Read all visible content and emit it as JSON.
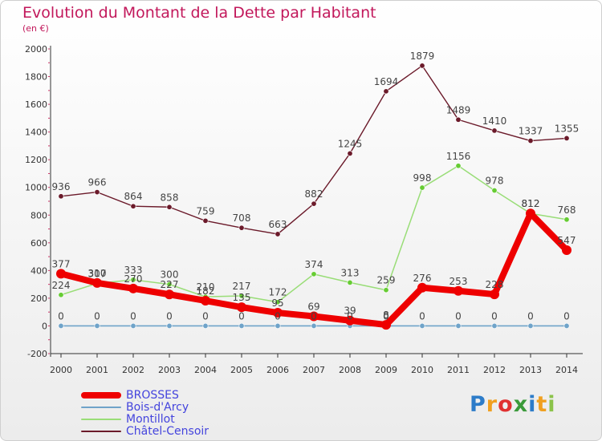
{
  "header": {
    "title": "Evolution du Montant de la Dette par Habitant",
    "subtitle": "(en €)"
  },
  "colors": {
    "title": "#c2185b",
    "axis": "#333333",
    "tick_mark": "#cc3366",
    "legend_text": "#4444dd"
  },
  "logo": {
    "letters": [
      "P",
      "r",
      "o",
      "x",
      "i",
      "t",
      "i"
    ],
    "colors": [
      "#2d7cc9",
      "#f0a020",
      "#e03030",
      "#3a9a3a",
      "#2d7cc9",
      "#f0a020",
      "#8bc34a"
    ]
  },
  "chart_data": {
    "type": "line",
    "title": "Evolution du Montant de la Dette par Habitant",
    "subtitle": "(en €)",
    "xlabel": "",
    "ylabel": "",
    "categories": [
      "2000",
      "2001",
      "2002",
      "2003",
      "2004",
      "2005",
      "2006",
      "2007",
      "2008",
      "2009",
      "2010",
      "2011",
      "2012",
      "2013",
      "2014"
    ],
    "ylim": [
      -200,
      2000
    ],
    "yticks": [
      "-200",
      "0",
      "200",
      "400",
      "600",
      "800",
      "1000",
      "1200",
      "1400",
      "1600",
      "1800",
      "2000"
    ],
    "grid": false,
    "legend_position": "bottom-left",
    "series": [
      {
        "name": "Châtel-Censoir",
        "color": "#6b1a2a",
        "width": 1.4,
        "values": [
          936,
          966,
          864,
          858,
          759,
          708,
          663,
          882,
          1245,
          1694,
          1879,
          1489,
          1410,
          1337,
          1355
        ]
      },
      {
        "name": "Montillot",
        "color": "#99dd77",
        "width": 1.5,
        "values": [
          224,
          307,
          333,
          300,
          210,
          217,
          172,
          374,
          313,
          259,
          998,
          1156,
          978,
          812,
          768
        ]
      },
      {
        "name": "Bois-d'Arcy",
        "color": "#6fa3c9",
        "width": 1.6,
        "values": [
          0,
          0,
          0,
          0,
          0,
          0,
          0,
          0,
          0,
          0,
          0,
          0,
          0,
          0,
          0
        ]
      },
      {
        "name": "BROSSES",
        "color": "#ee0000",
        "width": 8,
        "values": [
          377,
          310,
          270,
          227,
          182,
          135,
          95,
          69,
          39,
          8,
          276,
          253,
          228,
          812,
          547
        ]
      }
    ],
    "value_labels": {
      "Châtel-Censoir": [
        "936",
        "966",
        "864",
        "858",
        "759",
        "708",
        "663",
        "882",
        "1245",
        "1694",
        "1879",
        "1489",
        "1410",
        "1337",
        "1355"
      ],
      "Montillot": [
        "224",
        "307",
        "333",
        "300",
        "210",
        "217",
        "172",
        "374",
        "313",
        "259",
        "998",
        "1156",
        "978",
        "812",
        "768"
      ],
      "Bois-d'Arcy": [
        "0",
        "0",
        "0",
        "0",
        "0",
        "0",
        "0",
        "0",
        "0",
        "0",
        "0",
        "0",
        "0",
        "0",
        "0"
      ],
      "BROSSES": [
        "377",
        "310",
        "270",
        "227",
        "182",
        "135",
        "95",
        "69",
        "39",
        "8",
        "276",
        "253",
        "228",
        "812",
        "547"
      ]
    }
  },
  "legend": [
    {
      "name": "BROSSES",
      "color": "#ee0000",
      "thickness": 8
    },
    {
      "name": "Bois-d'Arcy",
      "color": "#6fa3c9",
      "thickness": 2
    },
    {
      "name": "Montillot",
      "color": "#99dd77",
      "thickness": 2
    },
    {
      "name": "Châtel-Censoir",
      "color": "#6b1a2a",
      "thickness": 2
    }
  ]
}
